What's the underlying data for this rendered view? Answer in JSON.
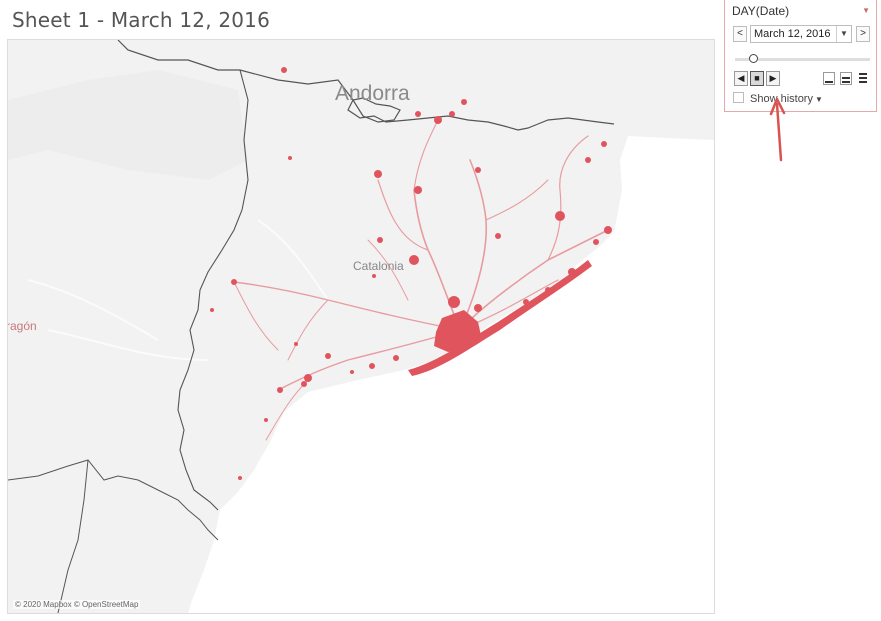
{
  "sheet": {
    "title": "Sheet 1 - March 12, 2016"
  },
  "map": {
    "labels": {
      "andorra": "Andorra",
      "catalonia": "Catalonia",
      "aragon": "ragón"
    },
    "attribution": "© 2020 Mapbox © OpenStreetMap",
    "colors": {
      "land": "#f2f2f2",
      "sea": "#ffffff",
      "marks": "#e0555d",
      "border": "#555555"
    }
  },
  "pages_panel": {
    "title": "DAY(Date)",
    "menu_icon": "caret-down-icon",
    "prev_label": "<",
    "next_label": ">",
    "date_value": "March 12, 2016",
    "dropdown_icon": "chevron-down-icon",
    "playback": {
      "back_label": "◀",
      "stop_label": "■",
      "forward_label": "▶"
    },
    "show_history_label": "Show history",
    "show_history_checked": false
  }
}
